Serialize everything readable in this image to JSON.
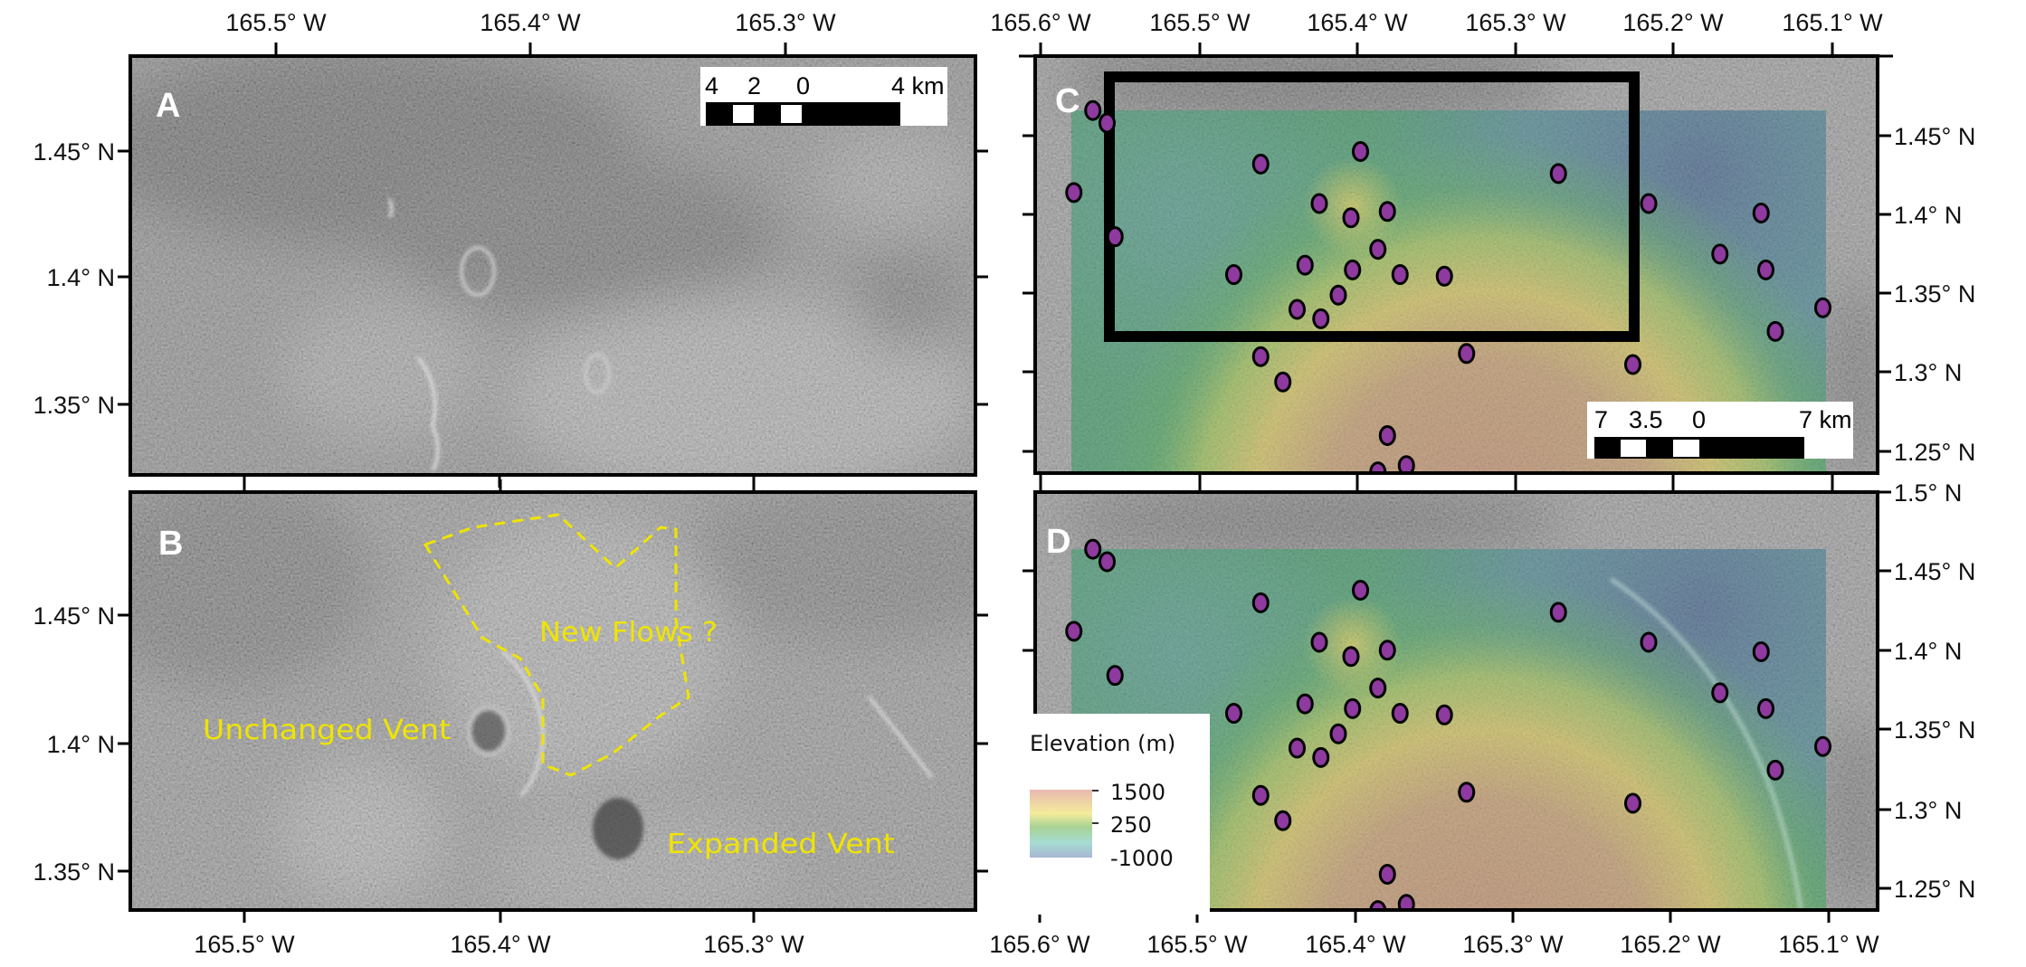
{
  "panels": {
    "A": {
      "label": "A",
      "lon_ticks_top": [
        "165.5° W",
        "165.4° W",
        "165.3° W"
      ],
      "lat_ticks_left": [
        "1.45° N",
        "1.4° N",
        "1.35° N"
      ],
      "scale_bar": {
        "labels": [
          "4",
          "2",
          "0",
          "4 km"
        ]
      }
    },
    "B": {
      "label": "B",
      "lon_ticks_bottom": [
        "165.5° W",
        "165.4° W",
        "165.3° W"
      ],
      "lat_ticks_left": [
        "1.45° N",
        "1.4° N",
        "1.35° N"
      ],
      "annotations": {
        "unchanged_vent": "Unchanged Vent",
        "new_flows": "New Flows ?",
        "expanded_vent": "Expanded Vent"
      },
      "outline_color": "#efe400"
    },
    "C": {
      "label": "C",
      "lon_ticks_top": [
        "165.6° W",
        "165.5° W",
        "165.4° W",
        "165.3° W",
        "165.2° W",
        "165.1° W"
      ],
      "lat_ticks_right": [
        "1.45° N",
        "1.4° N",
        "1.35° N",
        "1.3° N",
        "1.25° N"
      ],
      "scale_bar": {
        "labels": [
          "7",
          "3.5",
          "0",
          "7 km"
        ]
      }
    },
    "D": {
      "label": "D",
      "lon_ticks_bottom": [
        "165.6° W",
        "165.5° W",
        "165.4° W",
        "165.3° W",
        "165.2° W",
        "165.1° W"
      ],
      "lat_ticks_right": [
        "1.5° N",
        "1.45° N",
        "1.4° N",
        "1.35° N",
        "1.3° N",
        "1.25° N"
      ]
    }
  },
  "legend": {
    "title": "Elevation (m)",
    "labels": [
      "1500",
      "250",
      "-1000"
    ],
    "colors": [
      "#e8b8b0",
      "#f4ec9c",
      "#a8d294",
      "#a6dcd2",
      "#a8b6d2"
    ]
  },
  "colors": {
    "point_fill": "#8e3a9e",
    "point_stroke": "#000000",
    "annotation": "#efe400"
  },
  "points": [
    {
      "lon": 165.567,
      "lat": 1.466
    },
    {
      "lon": 165.558,
      "lat": 1.458
    },
    {
      "lon": 165.398,
      "lat": 1.44
    },
    {
      "lon": 165.461,
      "lat": 1.432
    },
    {
      "lon": 165.273,
      "lat": 1.426
    },
    {
      "lon": 165.579,
      "lat": 1.414
    },
    {
      "lon": 165.424,
      "lat": 1.407
    },
    {
      "lon": 165.381,
      "lat": 1.402
    },
    {
      "lon": 165.404,
      "lat": 1.398
    },
    {
      "lon": 165.216,
      "lat": 1.407
    },
    {
      "lon": 165.145,
      "lat": 1.401
    },
    {
      "lon": 165.553,
      "lat": 1.386
    },
    {
      "lon": 165.387,
      "lat": 1.378
    },
    {
      "lon": 165.171,
      "lat": 1.375
    },
    {
      "lon": 165.433,
      "lat": 1.368
    },
    {
      "lon": 165.478,
      "lat": 1.362
    },
    {
      "lon": 165.403,
      "lat": 1.365
    },
    {
      "lon": 165.373,
      "lat": 1.362
    },
    {
      "lon": 165.345,
      "lat": 1.361
    },
    {
      "lon": 165.142,
      "lat": 1.365
    },
    {
      "lon": 165.412,
      "lat": 1.349
    },
    {
      "lon": 165.106,
      "lat": 1.341
    },
    {
      "lon": 165.438,
      "lat": 1.34
    },
    {
      "lon": 165.423,
      "lat": 1.334
    },
    {
      "lon": 165.136,
      "lat": 1.326
    },
    {
      "lon": 165.461,
      "lat": 1.31
    },
    {
      "lon": 165.331,
      "lat": 1.312
    },
    {
      "lon": 165.226,
      "lat": 1.305
    },
    {
      "lon": 165.447,
      "lat": 1.294
    },
    {
      "lon": 165.381,
      "lat": 1.26
    },
    {
      "lon": 165.369,
      "lat": 1.241
    },
    {
      "lon": 165.387,
      "lat": 1.237
    }
  ]
}
